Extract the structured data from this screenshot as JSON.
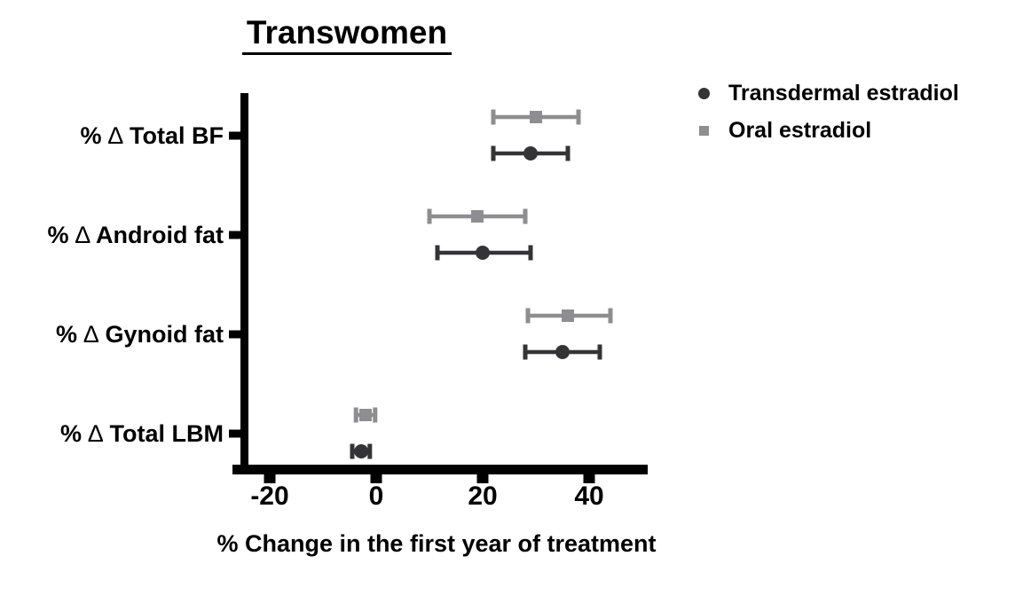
{
  "figure": {
    "title": "Transwomen",
    "background_color": "#ffffff",
    "axis_color": "#000000",
    "text_color": "#000000"
  },
  "chart_data": {
    "type": "scatter",
    "variant": "horizontal point estimates with error bars (forest-style plot)",
    "title": "Transwomen",
    "xlabel": "% Change in the first year of treatment",
    "ylabel": "",
    "categories": [
      "% ∆ Total BF",
      "% ∆ Android fat",
      "% ∆ Gynoid fat",
      "% ∆ Total LBM"
    ],
    "x_ticks": [
      -20,
      0,
      20,
      40
    ],
    "xlim": [
      -27,
      51
    ],
    "grid": false,
    "legend_position": "top-right",
    "series": [
      {
        "name": "Transdermal estradiol",
        "marker": "circle",
        "color": "#343436",
        "values": [
          29,
          20,
          35,
          -2.8
        ],
        "ci_low": [
          22,
          11.5,
          28,
          -4.5
        ],
        "ci_high": [
          36,
          29,
          42,
          -1.2
        ]
      },
      {
        "name": "Oral estradiol",
        "marker": "square",
        "color": "#8e8e90",
        "values": [
          30,
          19,
          36,
          -2
        ],
        "ci_low": [
          22,
          10,
          28.5,
          -3.8
        ],
        "ci_high": [
          38,
          28,
          44,
          -0.2
        ]
      }
    ]
  }
}
